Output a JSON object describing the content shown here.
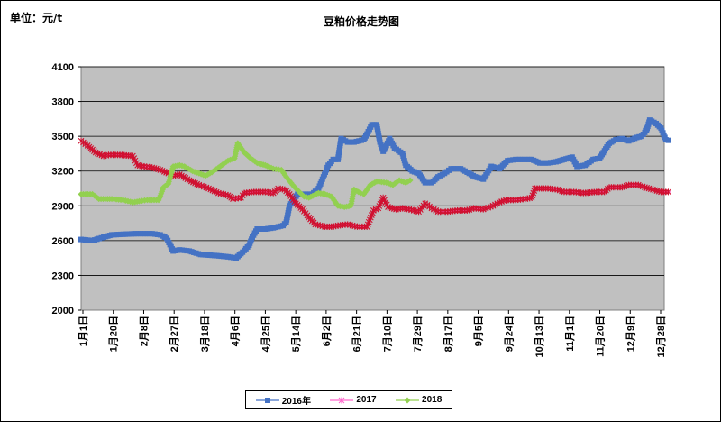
{
  "unit_label": "单位：元/t",
  "chart_data": {
    "type": "line",
    "title": "豆粕价格走势图",
    "ylim": [
      2000,
      4100
    ],
    "yticks": [
      "2000",
      "2300",
      "2600",
      "2900",
      "3200",
      "3500",
      "3800",
      "4100"
    ],
    "xticks": [
      "1月1日",
      "1月20日",
      "2月8日",
      "2月27日",
      "3月18日",
      "4月6日",
      "4月25日",
      "5月14日",
      "6月2日",
      "6月21日",
      "7月10日",
      "7月29日",
      "8月17日",
      "9月5日",
      "9月24日",
      "10月13日",
      "11月1日",
      "11月20日",
      "12月9日",
      "12月28日"
    ],
    "x_day_range": [
      1,
      362
    ],
    "grid": true,
    "legend_position": "bottom",
    "plot_background": "#C0C0C0",
    "series": [
      {
        "name": "2016年",
        "color": "#4472C4",
        "marker": "square",
        "points": [
          [
            1,
            2610
          ],
          [
            8,
            2600
          ],
          [
            15,
            2630
          ],
          [
            20,
            2650
          ],
          [
            27,
            2655
          ],
          [
            35,
            2660
          ],
          [
            45,
            2660
          ],
          [
            50,
            2650
          ],
          [
            54,
            2620
          ],
          [
            58,
            2510
          ],
          [
            62,
            2520
          ],
          [
            68,
            2510
          ],
          [
            75,
            2480
          ],
          [
            85,
            2470
          ],
          [
            92,
            2460
          ],
          [
            97,
            2450
          ],
          [
            101,
            2500
          ],
          [
            105,
            2560
          ],
          [
            107,
            2630
          ],
          [
            110,
            2700
          ],
          [
            115,
            2700
          ],
          [
            120,
            2710
          ],
          [
            126,
            2730
          ],
          [
            128,
            2760
          ],
          [
            130,
            2900
          ],
          [
            135,
            3000
          ],
          [
            140,
            3000
          ],
          [
            144,
            3000
          ],
          [
            148,
            3050
          ],
          [
            151,
            3150
          ],
          [
            154,
            3250
          ],
          [
            157,
            3300
          ],
          [
            160,
            3300
          ],
          [
            162,
            3480
          ],
          [
            166,
            3450
          ],
          [
            170,
            3450
          ],
          [
            176,
            3470
          ],
          [
            178,
            3520
          ],
          [
            181,
            3600
          ],
          [
            184,
            3600
          ],
          [
            186,
            3450
          ],
          [
            188,
            3370
          ],
          [
            190,
            3420
          ],
          [
            192,
            3480
          ],
          [
            195,
            3400
          ],
          [
            200,
            3350
          ],
          [
            202,
            3250
          ],
          [
            206,
            3200
          ],
          [
            210,
            3180
          ],
          [
            214,
            3100
          ],
          [
            218,
            3100
          ],
          [
            222,
            3150
          ],
          [
            226,
            3180
          ],
          [
            230,
            3220
          ],
          [
            236,
            3220
          ],
          [
            240,
            3190
          ],
          [
            245,
            3150
          ],
          [
            250,
            3130
          ],
          [
            255,
            3240
          ],
          [
            260,
            3220
          ],
          [
            265,
            3290
          ],
          [
            270,
            3300
          ],
          [
            280,
            3300
          ],
          [
            285,
            3270
          ],
          [
            290,
            3270
          ],
          [
            295,
            3280
          ],
          [
            300,
            3300
          ],
          [
            305,
            3320
          ],
          [
            308,
            3240
          ],
          [
            313,
            3250
          ],
          [
            318,
            3300
          ],
          [
            322,
            3310
          ],
          [
            328,
            3440
          ],
          [
            332,
            3470
          ],
          [
            336,
            3480
          ],
          [
            340,
            3460
          ],
          [
            345,
            3490
          ],
          [
            348,
            3500
          ],
          [
            351,
            3550
          ],
          [
            353,
            3640
          ],
          [
            357,
            3610
          ],
          [
            360,
            3570
          ],
          [
            363,
            3470
          ],
          [
            366,
            3460
          ]
        ]
      },
      {
        "name": "2017",
        "color": "#FF66CC",
        "marker": "x",
        "points": [
          [
            1,
            3460
          ],
          [
            5,
            3420
          ],
          [
            10,
            3360
          ],
          [
            15,
            3330
          ],
          [
            18,
            3340
          ],
          [
            25,
            3340
          ],
          [
            33,
            3330
          ],
          [
            36,
            3250
          ],
          [
            40,
            3240
          ],
          [
            45,
            3230
          ],
          [
            50,
            3210
          ],
          [
            55,
            3180
          ],
          [
            58,
            3160
          ],
          [
            62,
            3170
          ],
          [
            68,
            3120
          ],
          [
            74,
            3080
          ],
          [
            80,
            3050
          ],
          [
            86,
            3010
          ],
          [
            92,
            2990
          ],
          [
            95,
            2960
          ],
          [
            100,
            2970
          ],
          [
            102,
            3010
          ],
          [
            108,
            3020
          ],
          [
            115,
            3020
          ],
          [
            120,
            3010
          ],
          [
            123,
            3050
          ],
          [
            127,
            3040
          ],
          [
            130,
            3000
          ],
          [
            134,
            2920
          ],
          [
            138,
            2870
          ],
          [
            142,
            2800
          ],
          [
            146,
            2740
          ],
          [
            152,
            2720
          ],
          [
            156,
            2720
          ],
          [
            160,
            2730
          ],
          [
            166,
            2740
          ],
          [
            172,
            2720
          ],
          [
            178,
            2720
          ],
          [
            182,
            2860
          ],
          [
            185,
            2880
          ],
          [
            188,
            2970
          ],
          [
            191,
            2890
          ],
          [
            196,
            2870
          ],
          [
            200,
            2880
          ],
          [
            204,
            2870
          ],
          [
            210,
            2850
          ],
          [
            214,
            2920
          ],
          [
            218,
            2880
          ],
          [
            222,
            2850
          ],
          [
            228,
            2850
          ],
          [
            234,
            2860
          ],
          [
            240,
            2860
          ],
          [
            244,
            2880
          ],
          [
            250,
            2870
          ],
          [
            256,
            2900
          ],
          [
            260,
            2930
          ],
          [
            264,
            2950
          ],
          [
            270,
            2950
          ],
          [
            276,
            2960
          ],
          [
            280,
            2970
          ],
          [
            282,
            3050
          ],
          [
            290,
            3050
          ],
          [
            296,
            3040
          ],
          [
            300,
            3020
          ],
          [
            306,
            3020
          ],
          [
            312,
            3010
          ],
          [
            320,
            3020
          ],
          [
            325,
            3020
          ],
          [
            328,
            3060
          ],
          [
            336,
            3060
          ],
          [
            340,
            3080
          ],
          [
            346,
            3080
          ],
          [
            350,
            3060
          ],
          [
            355,
            3040
          ],
          [
            360,
            3020
          ],
          [
            366,
            3020
          ]
        ]
      },
      {
        "name": "2018",
        "color": "#92D050",
        "marker": "diamond",
        "points": [
          [
            1,
            3000
          ],
          [
            8,
            3000
          ],
          [
            12,
            2960
          ],
          [
            20,
            2960
          ],
          [
            27,
            2950
          ],
          [
            33,
            2930
          ],
          [
            37,
            2940
          ],
          [
            42,
            2950
          ],
          [
            49,
            2950
          ],
          [
            52,
            3060
          ],
          [
            55,
            3090
          ],
          [
            58,
            3240
          ],
          [
            62,
            3250
          ],
          [
            65,
            3240
          ],
          [
            70,
            3200
          ],
          [
            74,
            3180
          ],
          [
            78,
            3160
          ],
          [
            82,
            3190
          ],
          [
            86,
            3230
          ],
          [
            92,
            3290
          ],
          [
            96,
            3310
          ],
          [
            98,
            3440
          ],
          [
            102,
            3360
          ],
          [
            106,
            3310
          ],
          [
            110,
            3270
          ],
          [
            115,
            3250
          ],
          [
            120,
            3220
          ],
          [
            125,
            3210
          ],
          [
            128,
            3150
          ],
          [
            132,
            3080
          ],
          [
            136,
            3020
          ],
          [
            139,
            2980
          ],
          [
            142,
            2970
          ],
          [
            148,
            3010
          ],
          [
            152,
            3000
          ],
          [
            156,
            2980
          ],
          [
            160,
            2900
          ],
          [
            164,
            2890
          ],
          [
            168,
            2900
          ],
          [
            170,
            3040
          ],
          [
            174,
            3010
          ],
          [
            176,
            3000
          ],
          [
            180,
            3080
          ],
          [
            184,
            3110
          ],
          [
            190,
            3100
          ],
          [
            194,
            3080
          ],
          [
            198,
            3120
          ],
          [
            202,
            3100
          ],
          [
            206,
            3130
          ]
        ]
      }
    ]
  }
}
